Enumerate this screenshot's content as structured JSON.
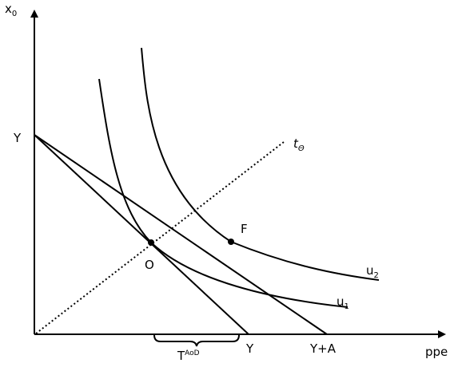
{
  "axes": {
    "y_label": "x",
    "y_label_sub": "0",
    "x_label": "ppe"
  },
  "labels": {
    "y_intercept": "Y",
    "x_budget_intercept": "Y",
    "x_budget_shifted": "Y+A",
    "tax_line": "t",
    "tax_line_sub": "Θ",
    "point_f": "F",
    "point_o": "O",
    "curve_u1": "u",
    "curve_u1_sub": "1",
    "curve_u2": "u",
    "curve_u2_sub": "2",
    "brace": "T",
    "brace_sup": "AoD"
  }
}
